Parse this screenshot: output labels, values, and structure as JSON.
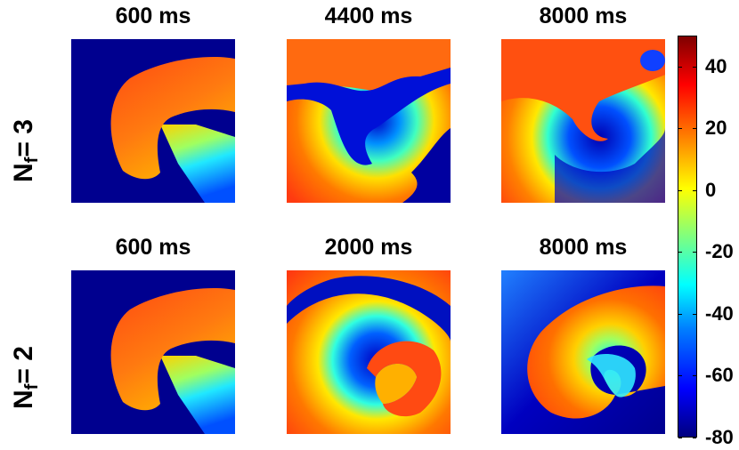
{
  "rows": [
    {
      "label_main": "N",
      "label_sub": "f",
      "label_rest": "= 3",
      "titles": [
        "600 ms",
        "4400 ms",
        "8000 ms"
      ]
    },
    {
      "label_main": "N",
      "label_sub": "f",
      "label_rest": "= 2",
      "titles": [
        "600 ms",
        "2000 ms",
        "8000 ms"
      ]
    }
  ],
  "colorbar": {
    "ticks": [
      "40",
      "20",
      "0",
      "-20",
      "-40",
      "-60",
      "-80"
    ],
    "min": -80,
    "max": 50,
    "colormap": "jet"
  }
}
